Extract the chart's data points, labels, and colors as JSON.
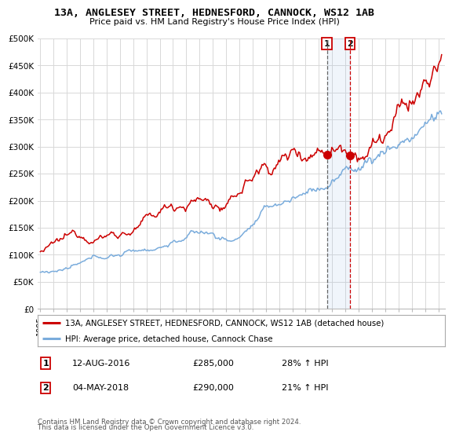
{
  "title": "13A, ANGLESEY STREET, HEDNESFORD, CANNOCK, WS12 1AB",
  "subtitle": "Price paid vs. HM Land Registry's House Price Index (HPI)",
  "ylabel_ticks": [
    "£0",
    "£50K",
    "£100K",
    "£150K",
    "£200K",
    "£250K",
    "£300K",
    "£350K",
    "£400K",
    "£450K",
    "£500K"
  ],
  "ytick_values": [
    0,
    50000,
    100000,
    150000,
    200000,
    250000,
    300000,
    350000,
    400000,
    450000,
    500000
  ],
  "xlim_start": 1994.8,
  "xlim_end": 2025.5,
  "ylim": [
    0,
    500000
  ],
  "red_line_color": "#cc0000",
  "blue_line_color": "#7aacdc",
  "grid_color": "#d8d8d8",
  "purchase1_date": 2016.614,
  "purchase1_price": 285000,
  "purchase1_text": "12-AUG-2016",
  "purchase1_pct": "28%",
  "purchase2_date": 2018.338,
  "purchase2_price": 290000,
  "purchase2_text": "04-MAY-2018",
  "purchase2_pct": "21%",
  "legend_line1": "13A, ANGLESEY STREET, HEDNESFORD, CANNOCK, WS12 1AB (detached house)",
  "legend_line2": "HPI: Average price, detached house, Cannock Chase",
  "footer1": "Contains HM Land Registry data © Crown copyright and database right 2024.",
  "footer2": "This data is licensed under the Open Government Licence v3.0.",
  "background_color": "#ffffff",
  "plot_bg_color": "#ffffff"
}
